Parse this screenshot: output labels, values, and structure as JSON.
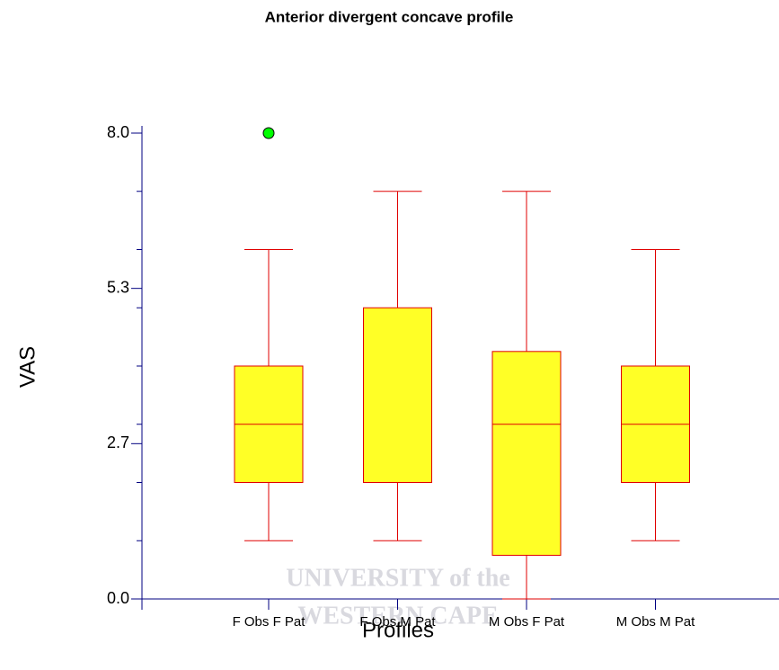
{
  "chart_data": {
    "type": "box",
    "title": "Anterior divergent concave profile",
    "xlabel": "Profiles",
    "ylabel": "VAS",
    "categories": [
      "F Obs F Pat",
      "F Obs M Pat",
      "M Obs F Pat",
      "M Obs M Pat"
    ],
    "boxes": [
      {
        "whislo": 1,
        "q1": 2,
        "med": 3,
        "q3": 4,
        "whishi": 6,
        "fliers": [
          8
        ]
      },
      {
        "whislo": 1,
        "q1": 2,
        "med": 2,
        "q3": 5,
        "whishi": 7,
        "fliers": []
      },
      {
        "whislo": 0,
        "q1": 0.75,
        "med": 3,
        "q3": 4.25,
        "whishi": 7,
        "fliers": []
      },
      {
        "whislo": 1,
        "q1": 2,
        "med": 3,
        "q3": 4,
        "whishi": 6,
        "fliers": []
      }
    ],
    "ylim": [
      0,
      8
    ],
    "yticks": [
      {
        "value": 0,
        "label": "0.0"
      },
      {
        "value": 2.6667,
        "label": "2.7"
      },
      {
        "value": 5.3333,
        "label": "5.3"
      },
      {
        "value": 8,
        "label": "8.0"
      }
    ],
    "minor_yticks": [
      1,
      2,
      3,
      4,
      5,
      6,
      7
    ],
    "box_color": "#ffff00",
    "line_color": "#e00000",
    "axis_color": "#000080",
    "flier_color": "#00ff00",
    "watermark": [
      "UNIVERSITY of the",
      "WESTERN CAPE"
    ]
  }
}
